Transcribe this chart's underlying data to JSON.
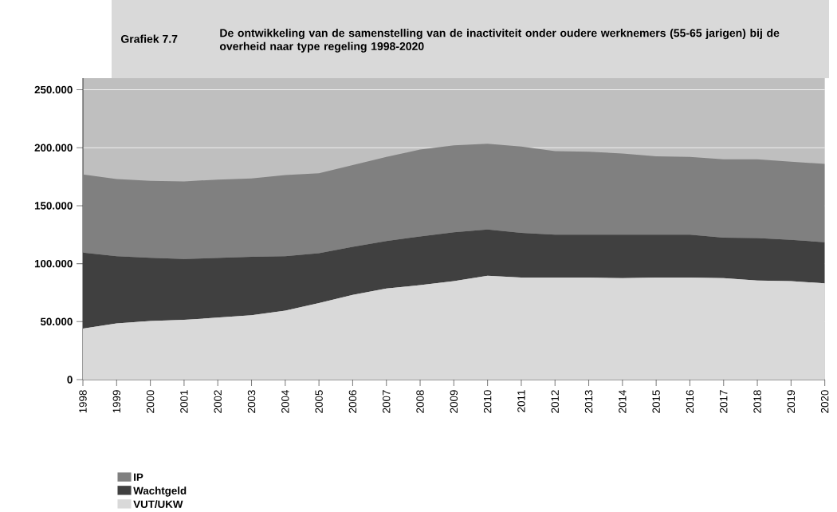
{
  "chart_data": {
    "type": "area",
    "stacked": true,
    "title": "De ontwikkeling van de samenstelling van de inactiviteit onder oudere werknemers (55-65 jarigen) bij de overheid naar type regeling 1998-2020",
    "annotations": [
      "Grafiek 7.7"
    ],
    "categories": [
      "1998",
      "1999",
      "2000",
      "2001",
      "2002",
      "2003",
      "2004",
      "2005",
      "2006",
      "2007",
      "2008",
      "2009",
      "2010",
      "2011",
      "2012",
      "2013",
      "2014",
      "2015",
      "2016",
      "2017",
      "2018",
      "2019",
      "2020"
    ],
    "series": [
      {
        "name": "VUT/UKW",
        "color": "#d9d9d9",
        "values": [
          44,
          48.5,
          50.5,
          51.5,
          53.5,
          55.5,
          59.5,
          66,
          73,
          78.5,
          81.5,
          85,
          89.5,
          88,
          88,
          88,
          87.5,
          88,
          88,
          87.5,
          85.5,
          85,
          83
        ]
      },
      {
        "name": "Wachtgeld",
        "color": "#404040",
        "values": [
          65.5,
          58,
          54.5,
          52.5,
          51.5,
          50.5,
          47,
          43,
          41.5,
          41,
          42,
          42,
          40,
          38.5,
          37,
          37,
          37.5,
          37,
          37,
          35,
          36.5,
          35.5,
          35.5
        ]
      },
      {
        "name": "IP",
        "color": "#808080",
        "values": [
          67.5,
          66.5,
          66.5,
          67,
          67.5,
          67.5,
          70,
          69,
          70.5,
          72.5,
          75,
          75,
          74,
          74.5,
          72,
          71.5,
          70,
          67.5,
          67,
          67.5,
          68,
          67.5,
          67.5
        ]
      }
    ],
    "ylim": [
      0,
      260
    ],
    "yticks": [
      0,
      {
        "value": 50,
        "label": "50.000"
      },
      {
        "value": 100,
        "label": "100.000"
      },
      {
        "value": 150,
        "label": "150.000"
      },
      {
        "value": 200,
        "label": "200.000"
      },
      {
        "value": 250,
        "label": "250.000"
      }
    ],
    "grid": "y",
    "legend": "bottom"
  }
}
